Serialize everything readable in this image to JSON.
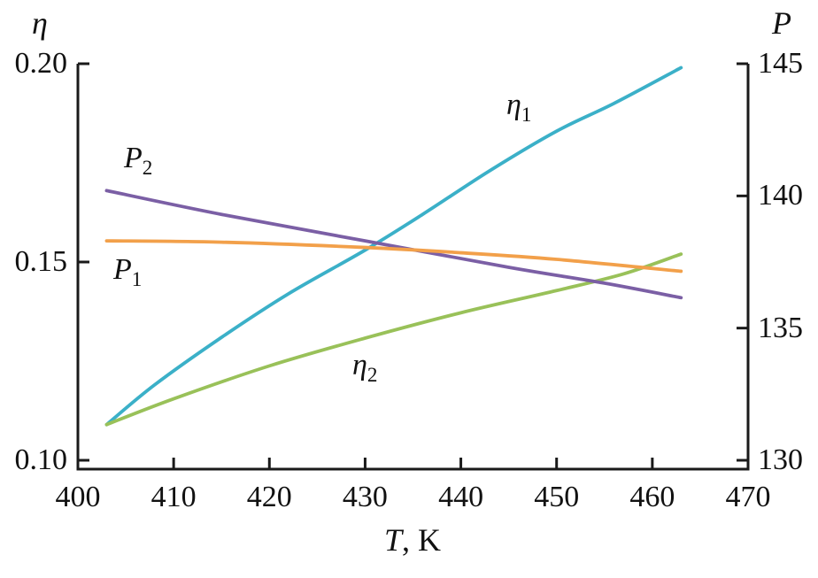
{
  "chart_data": {
    "type": "line",
    "title": "",
    "x_axis": {
      "label_main": "T",
      "label_rest": ", K",
      "range": [
        400,
        470
      ],
      "ticks": [
        400,
        410,
        420,
        430,
        440,
        450,
        460,
        470
      ],
      "tick_labels": [
        "400",
        "410",
        "420",
        "430",
        "440",
        "450",
        "460",
        "470"
      ]
    },
    "y_axis_left": {
      "label": "η",
      "range": [
        0.1,
        0.2
      ],
      "ticks": [
        0.1,
        0.15,
        0.2
      ],
      "tick_labels": [
        "0.10",
        "0.15",
        "0.20"
      ]
    },
    "y_axis_right": {
      "label": "P",
      "range": [
        130,
        145
      ],
      "ticks": [
        130,
        135,
        140,
        145
      ],
      "tick_labels": [
        "130",
        "135",
        "140",
        "145"
      ]
    },
    "grid": "off",
    "legend": "inline-labels",
    "series": [
      {
        "name": "eta1",
        "label_base": "η",
        "label_sub": "1",
        "axis": "left",
        "color": "#3bb0c8",
        "points": [
          [
            403,
            0.109
          ],
          [
            408,
            0.119
          ],
          [
            415,
            0.131
          ],
          [
            422,
            0.142
          ],
          [
            430,
            0.153
          ],
          [
            436,
            0.162
          ],
          [
            443,
            0.173
          ],
          [
            450,
            0.183
          ],
          [
            456,
            0.19
          ],
          [
            463,
            0.199
          ]
        ]
      },
      {
        "name": "eta2",
        "label_base": "η",
        "label_sub": "2",
        "axis": "left",
        "color": "#99c159",
        "points": [
          [
            403,
            0.109
          ],
          [
            410,
            0.1155
          ],
          [
            420,
            0.1238
          ],
          [
            430,
            0.1308
          ],
          [
            440,
            0.1372
          ],
          [
            450,
            0.1428
          ],
          [
            457,
            0.147
          ],
          [
            463,
            0.152
          ]
        ]
      },
      {
        "name": "P2",
        "label_base": "P",
        "label_sub": "2",
        "axis": "right",
        "color": "#7b5fa5",
        "points": [
          [
            403,
            140.2
          ],
          [
            415,
            139.3
          ],
          [
            430,
            138.3
          ],
          [
            445,
            137.3
          ],
          [
            455,
            136.7
          ],
          [
            463,
            136.15
          ]
        ]
      },
      {
        "name": "P1",
        "label_base": "P",
        "label_sub": "1",
        "axis": "right",
        "color": "#f2a04a",
        "points": [
          [
            403,
            138.3
          ],
          [
            415,
            138.25
          ],
          [
            430,
            138.05
          ],
          [
            440,
            137.85
          ],
          [
            450,
            137.6
          ],
          [
            463,
            137.15
          ]
        ]
      }
    ]
  }
}
